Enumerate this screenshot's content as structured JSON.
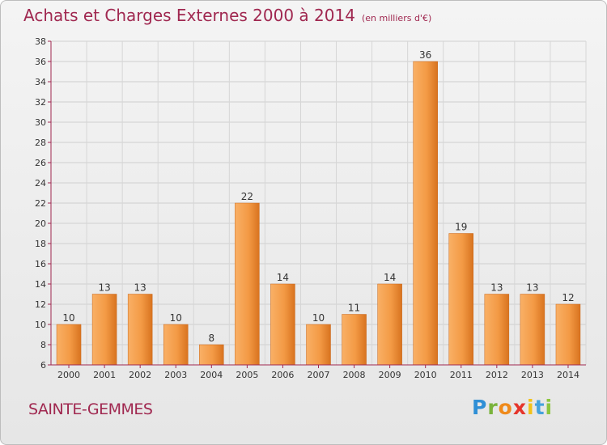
{
  "title": "Achats et Charges Externes 2000 à 2014",
  "subtitle": "(en milliers d'€)",
  "place": "SAINTE-GEMMES",
  "logo": {
    "p": "P",
    "r": "r",
    "o": "o",
    "x": "x",
    "i1": "i",
    "t": "t",
    "i2": "i"
  },
  "colors": {
    "accent": "#a02850",
    "bar_light": "#f7a85a",
    "bar_dark": "#d86f1c",
    "axis": "#a02850"
  },
  "chart_data": {
    "type": "bar",
    "title": "Achats et Charges Externes 2000 à 2014",
    "xlabel": "",
    "ylabel": "",
    "ylim": [
      6,
      38
    ],
    "yticks": [
      6,
      8,
      10,
      12,
      14,
      16,
      18,
      20,
      22,
      24,
      26,
      28,
      30,
      32,
      34,
      36,
      38
    ],
    "grid": true,
    "categories": [
      "2000",
      "2001",
      "2002",
      "2003",
      "2004",
      "2005",
      "2006",
      "2007",
      "2008",
      "2009",
      "2010",
      "2011",
      "2012",
      "2013",
      "2014"
    ],
    "values": [
      10,
      13,
      13,
      10,
      8,
      22,
      14,
      10,
      11,
      14,
      36,
      19,
      13,
      13,
      12
    ]
  }
}
